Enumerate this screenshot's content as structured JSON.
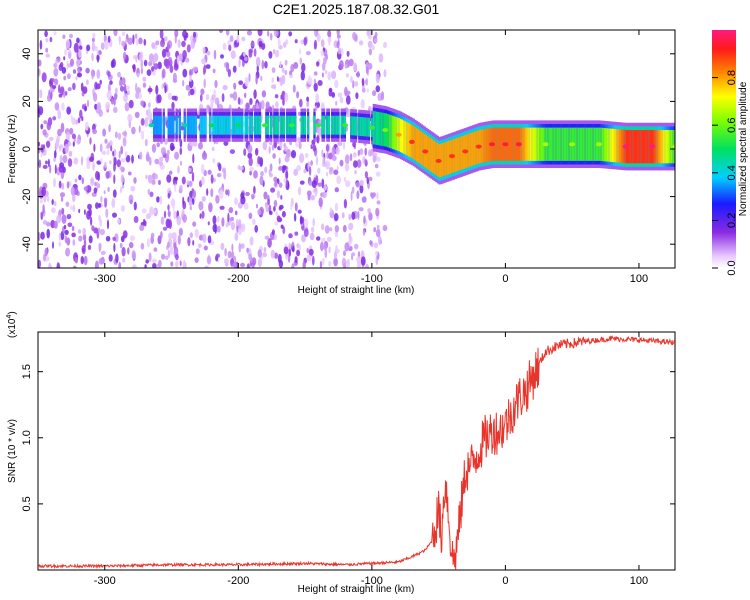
{
  "title": "C2E1.2025.187.08.32.G01",
  "chart_data": [
    {
      "type": "heatmap",
      "title": "C2E1.2025.187.08.32.G01",
      "xlabel": "Height of straight line (km)",
      "ylabel": "Frequency (Hz)",
      "xlim": [
        -350,
        127
      ],
      "ylim": [
        -50,
        50
      ],
      "x_ticks": [
        -300,
        -200,
        -100,
        0,
        100
      ],
      "x_tick_labels": [
        "-300",
        "-200",
        "-100",
        "0",
        "100"
      ],
      "y_ticks": [
        -40,
        -20,
        0,
        20,
        40
      ],
      "y_tick_labels": [
        "-40",
        "-20",
        "0",
        "20",
        "40"
      ],
      "grid": false,
      "colorbar": {
        "label": "Normalized spectral amplitude",
        "range": [
          0,
          1
        ],
        "ticks": [
          0.0,
          0.2,
          0.4,
          0.6,
          0.8
        ],
        "tick_labels": [
          "0.0",
          "0.2",
          "0.4",
          "0.6",
          "0.8"
        ],
        "colormap": "rainbow (white-purple-blue-cyan-green-yellow-orange-red-magenta)"
      },
      "ridge": {
        "x": [
          -265,
          -240,
          -220,
          -200,
          -180,
          -160,
          -140,
          -120,
          -100,
          -90,
          -80,
          -70,
          -60,
          -50,
          -40,
          -30,
          -20,
          -10,
          0,
          10,
          30,
          50,
          70,
          90,
          110,
          127
        ],
        "frequency": [
          10,
          10,
          10,
          10,
          10,
          10,
          10,
          10,
          9,
          8,
          6,
          3,
          -1,
          -5,
          -3,
          -1,
          1,
          2,
          2,
          2,
          2,
          2,
          2,
          1,
          1,
          1
        ],
        "amplitude": [
          0.35,
          0.35,
          0.4,
          0.4,
          0.45,
          0.45,
          0.45,
          0.45,
          0.45,
          0.5,
          0.7,
          0.8,
          0.8,
          0.8,
          0.8,
          0.8,
          0.8,
          0.85,
          0.85,
          0.85,
          0.55,
          0.55,
          0.55,
          0.9,
          0.9,
          0.55
        ]
      },
      "noise_region_x": [
        -350,
        -90
      ]
    },
    {
      "type": "line",
      "xlabel": "Height of straight line (km)",
      "ylabel": "SNR (10 * v/v)",
      "y_multiplier_label": "(x10",
      "y_multiplier_exp": "4",
      "xlim": [
        -350,
        127
      ],
      "ylim": [
        0,
        1.8
      ],
      "x_ticks": [
        -300,
        -200,
        -100,
        0,
        100
      ],
      "x_tick_labels": [
        "-300",
        "-200",
        "-100",
        "0",
        "100"
      ],
      "y_ticks": [
        0.5,
        1.0,
        1.5
      ],
      "y_tick_labels": [
        "0.5",
        "1.0",
        "1.5"
      ],
      "grid": false,
      "series": [
        {
          "color": "#e8352c",
          "x": [
            -350,
            -300,
            -250,
            -200,
            -150,
            -120,
            -100,
            -80,
            -70,
            -60,
            -55,
            -50,
            -48,
            -45,
            -42,
            -40,
            -38,
            -35,
            -30,
            -25,
            -20,
            -15,
            -10,
            -5,
            0,
            5,
            10,
            15,
            20,
            25,
            30,
            40,
            60,
            80,
            100,
            127
          ],
          "y": [
            0.03,
            0.03,
            0.04,
            0.04,
            0.05,
            0.04,
            0.05,
            0.06,
            0.1,
            0.15,
            0.22,
            0.45,
            0.25,
            0.7,
            0.35,
            0.1,
            0.08,
            0.3,
            0.75,
            0.8,
            0.9,
            1.0,
            1.05,
            1.05,
            1.1,
            1.2,
            1.3,
            1.35,
            1.45,
            1.55,
            1.65,
            1.7,
            1.73,
            1.75,
            1.74,
            1.72
          ]
        }
      ]
    }
  ]
}
